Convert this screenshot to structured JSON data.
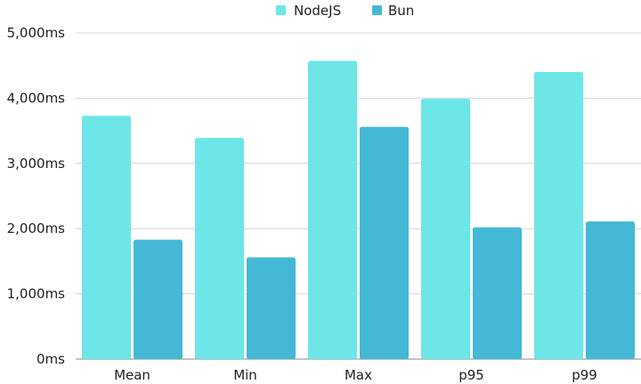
{
  "chart_data": {
    "type": "bar",
    "categories": [
      "Mean",
      "Min",
      "Max",
      "p95",
      "p99"
    ],
    "series": [
      {
        "name": "NodeJS",
        "values": [
          3730,
          3390,
          4570,
          3990,
          4400
        ],
        "color": "#6de6e8"
      },
      {
        "name": "Bun",
        "values": [
          1830,
          1560,
          3560,
          2020,
          2110
        ],
        "color": "#44b8d4"
      }
    ],
    "yticks": [
      {
        "value": 0,
        "label": "0ms"
      },
      {
        "value": 1000,
        "label": "1,000ms"
      },
      {
        "value": 2000,
        "label": "2,000ms"
      },
      {
        "value": 3000,
        "label": "3,000ms"
      },
      {
        "value": 4000,
        "label": "4,000ms"
      },
      {
        "value": 5000,
        "label": "5,000ms"
      }
    ],
    "ylim": [
      0,
      5000
    ],
    "grid": true,
    "legend_position": "top-center",
    "title": "",
    "xlabel": "",
    "ylabel": ""
  }
}
